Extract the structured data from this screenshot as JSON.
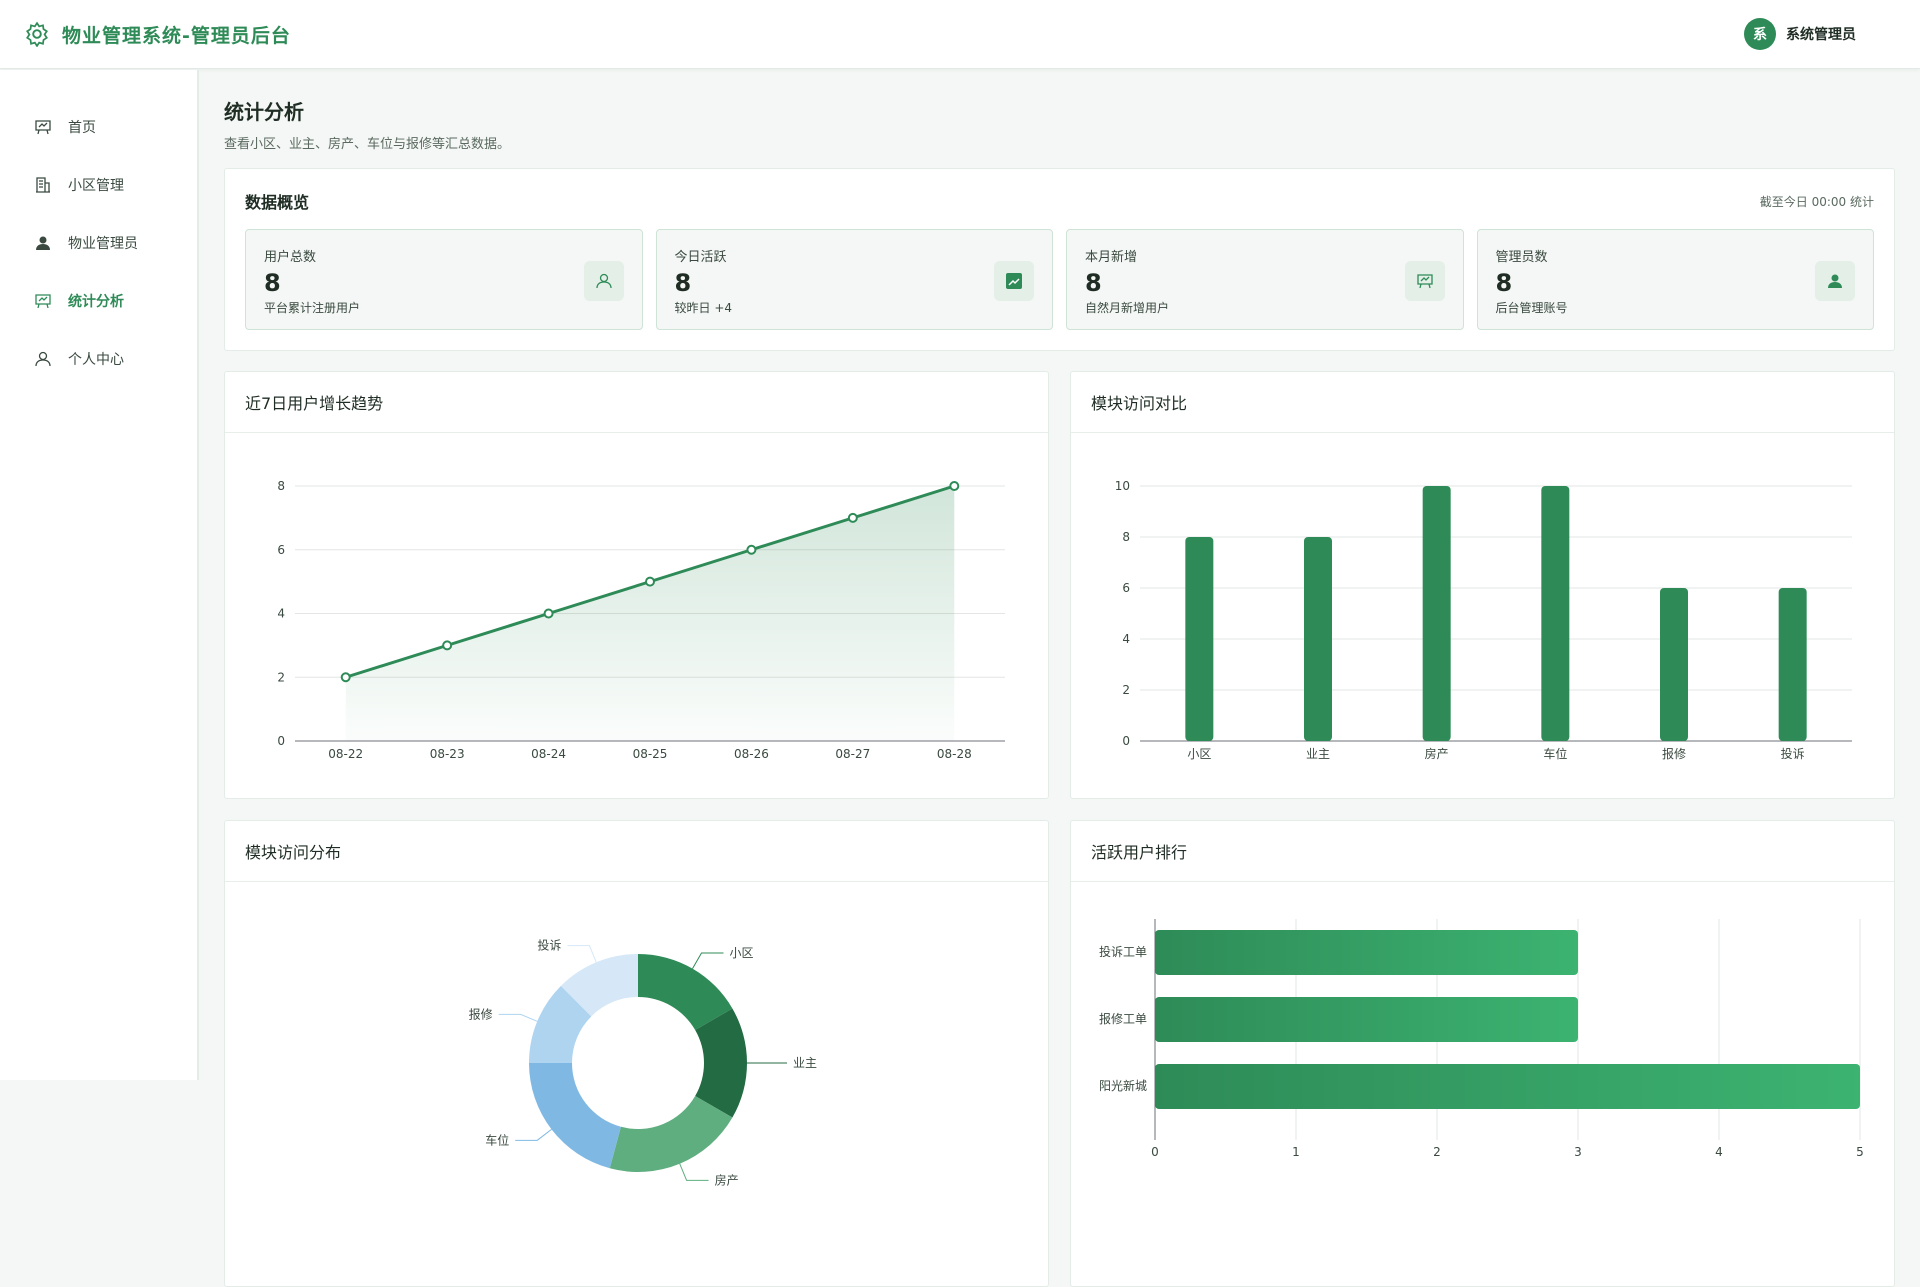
{
  "header": {
    "title": "物业管理系统-管理员后台",
    "avatar": "系",
    "user": "系统管理员"
  },
  "sidebar": {
    "items": [
      "首页",
      "小区管理",
      "物业管理员",
      "统计分析",
      "个人中心"
    ]
  },
  "page": {
    "title": "统计分析",
    "subtitle": "查看小区、业主、房产、车位与报修等汇总数据。"
  },
  "overview": {
    "title": "数据概览",
    "note": "截至今日 00:00 统计",
    "stats": [
      {
        "label": "用户总数",
        "value": 8,
        "note": "平台累计注册用户"
      },
      {
        "label": "今日活跃",
        "value": 8,
        "note": "较昨日 +4"
      },
      {
        "label": "本月新增",
        "value": 8,
        "note": "自然月新增用户"
      },
      {
        "label": "管理员数",
        "value": 8,
        "note": "后台管理账号"
      }
    ]
  },
  "chart_data": [
    {
      "type": "line",
      "title": "近7日用户增长趋势",
      "categories": [
        "08-22",
        "08-23",
        "08-24",
        "08-25",
        "08-26",
        "08-27",
        "08-28"
      ],
      "values": [
        2,
        3,
        4,
        5,
        6,
        7,
        8
      ],
      "color": "#2e8b57",
      "ylim": [
        0,
        8
      ],
      "yticks": [
        0,
        2,
        4,
        6,
        8
      ],
      "grid": true
    },
    {
      "type": "bar",
      "title": "模块访问对比",
      "categories": [
        "小区",
        "业主",
        "房产",
        "车位",
        "报修",
        "投诉"
      ],
      "values": [
        8,
        8,
        10,
        10,
        6,
        6
      ],
      "color": "#2e8b57",
      "ylim": [
        0,
        10
      ],
      "yticks": [
        0,
        2,
        4,
        6,
        8,
        10
      ],
      "grid": true
    },
    {
      "type": "pie",
      "title": "模块访问分布",
      "categories": [
        "小区",
        "业主",
        "房产",
        "车位",
        "报修",
        "投诉"
      ],
      "values": [
        8,
        8,
        10,
        10,
        6,
        6
      ],
      "colors": [
        "#2e8b57",
        "#236b43",
        "#5fae7f",
        "#7fb9e3",
        "#aed4f0",
        "#d6e8f7"
      ]
    },
    {
      "type": "hbar",
      "title": "活跃用户排行",
      "categories": [
        "投诉工单",
        "报修工单",
        "阳光新城"
      ],
      "values": [
        3,
        3,
        5
      ],
      "color": "#2e8b57",
      "xlim": [
        0,
        5
      ],
      "xticks": [
        0,
        1,
        2,
        3,
        4,
        5
      ],
      "grid": true
    }
  ]
}
